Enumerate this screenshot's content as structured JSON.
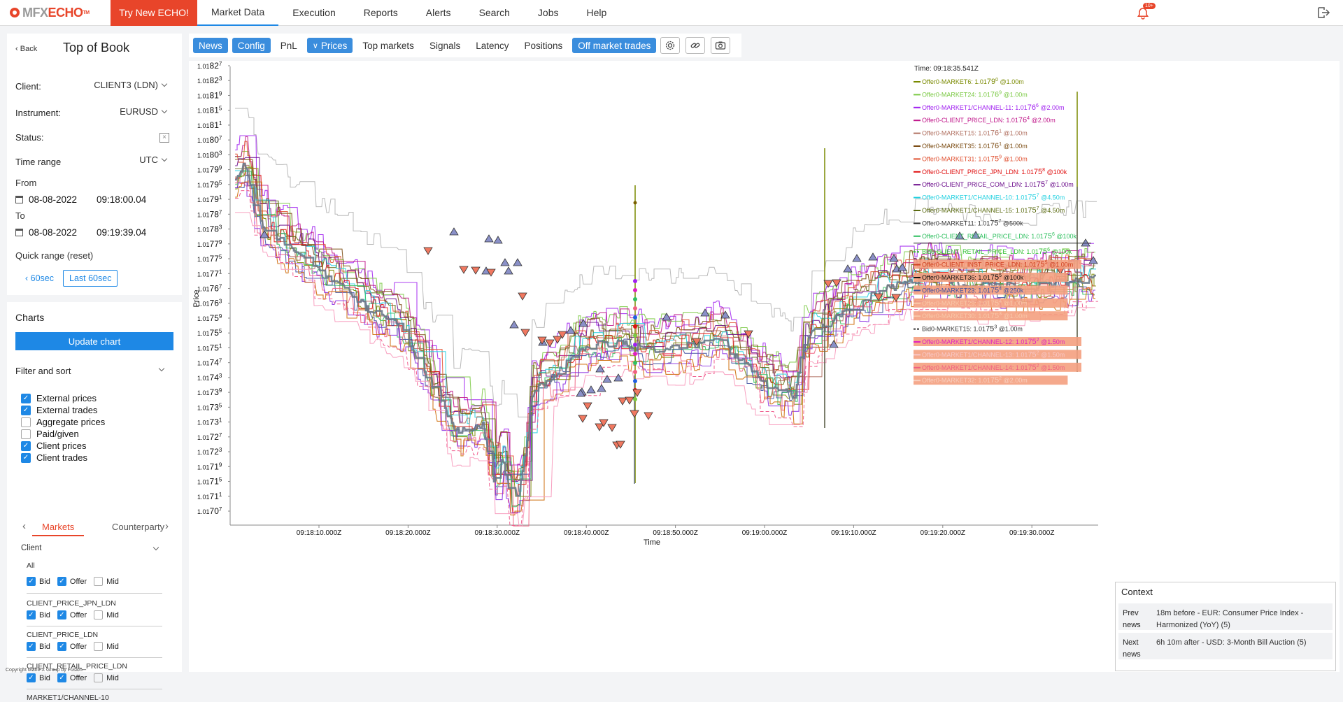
{
  "nav": {
    "logo_a": "MFX",
    "logo_b": "ECHO",
    "logo_tm": "TM",
    "try_btn": "Try New ECHO!",
    "items": [
      "Market Data",
      "Execution",
      "Reports",
      "Alerts",
      "Search",
      "Jobs",
      "Help"
    ],
    "bell_badge": "10+"
  },
  "panel": {
    "back": "Back",
    "title": "Top of Book",
    "client_label": "Client:",
    "client_value": "CLIENT3 (LDN)",
    "instrument_label": "Instrument:",
    "instrument_value": "EURUSD",
    "status_label": "Status:",
    "timerange_label": "Time range",
    "timerange_value": "UTC",
    "from_label": "From",
    "from_date": "08-08-2022",
    "from_time": "09:18:00.04",
    "to_label": "To",
    "to_date": "08-08-2022",
    "to_time": "09:19:39.04",
    "quick_range": "Quick range (reset)",
    "btn_60": "60sec",
    "btn_last60": "Last 60sec"
  },
  "charts": {
    "heading": "Charts",
    "update_btn": "Update chart",
    "filter_label": "Filter and sort",
    "filters": [
      {
        "label": "External prices",
        "checked": true
      },
      {
        "label": "External trades",
        "checked": true
      },
      {
        "label": "Aggregate prices",
        "checked": false
      },
      {
        "label": "Paid/given",
        "checked": false
      },
      {
        "label": "Client prices",
        "checked": true
      },
      {
        "label": "Client trades",
        "checked": true
      }
    ],
    "tab_markets": "Markets",
    "tab_counterparty": "Counterparty",
    "client_group": "Client",
    "all_label": "All",
    "bid": "Bid",
    "offer": "Offer",
    "mid": "Mid",
    "groups": [
      "CLIENT_PRICE_JPN_LDN",
      "CLIENT_PRICE_LDN",
      "CLIENT_RETAIL_PRICE_LDN",
      "MARKET1/CHANNEL-10"
    ],
    "copyright": "Copyright MahiFX Group by Fusion"
  },
  "toolbar": {
    "buttons": [
      {
        "label": "News",
        "on": true
      },
      {
        "label": "Config",
        "on": true
      },
      {
        "label": "PnL",
        "on": false
      },
      {
        "label": "Prices",
        "on": true
      },
      {
        "label": "Top markets",
        "on": false
      },
      {
        "label": "Signals",
        "on": false
      },
      {
        "label": "Latency",
        "on": false
      },
      {
        "label": "Positions",
        "on": false
      },
      {
        "label": "Off market trades",
        "on": true
      }
    ]
  },
  "chart_data": {
    "type": "line",
    "xlabel": "Time",
    "ylabel": "Price",
    "x_ticks": [
      "09:18:10.000Z",
      "09:18:20.000Z",
      "09:18:30.000Z",
      "09:18:40.000Z",
      "09:18:50.000Z",
      "09:19:00.000Z",
      "09:19:10.000Z",
      "09:19:20.000Z",
      "09:19:30.000Z"
    ],
    "y_ticks": [
      {
        "a": "1.01",
        "b": "82",
        "c": "7"
      },
      {
        "a": "1.01",
        "b": "82",
        "c": "3"
      },
      {
        "a": "1.01",
        "b": "81",
        "c": "9"
      },
      {
        "a": "1.01",
        "b": "81",
        "c": "5"
      },
      {
        "a": "1.01",
        "b": "81",
        "c": "1"
      },
      {
        "a": "1.01",
        "b": "80",
        "c": "7"
      },
      {
        "a": "1.01",
        "b": "80",
        "c": "3"
      },
      {
        "a": "1.01",
        "b": "79",
        "c": "9"
      },
      {
        "a": "1.01",
        "b": "79",
        "c": "5"
      },
      {
        "a": "1.01",
        "b": "79",
        "c": "1"
      },
      {
        "a": "1.01",
        "b": "78",
        "c": "7"
      },
      {
        "a": "1.01",
        "b": "78",
        "c": "3"
      },
      {
        "a": "1.01",
        "b": "77",
        "c": "9"
      },
      {
        "a": "1.01",
        "b": "77",
        "c": "5"
      },
      {
        "a": "1.01",
        "b": "77",
        "c": "1"
      },
      {
        "a": "1.01",
        "b": "76",
        "c": "7"
      },
      {
        "a": "1.01",
        "b": "76",
        "c": "3"
      },
      {
        "a": "1.01",
        "b": "75",
        "c": "9"
      },
      {
        "a": "1.01",
        "b": "75",
        "c": "5"
      },
      {
        "a": "1.01",
        "b": "75",
        "c": "1"
      },
      {
        "a": "1.01",
        "b": "74",
        "c": "7"
      },
      {
        "a": "1.01",
        "b": "74",
        "c": "3"
      },
      {
        "a": "1.01",
        "b": "73",
        "c": "9"
      },
      {
        "a": "1.01",
        "b": "73",
        "c": "5"
      },
      {
        "a": "1.01",
        "b": "73",
        "c": "1"
      },
      {
        "a": "1.01",
        "b": "72",
        "c": "7"
      },
      {
        "a": "1.01",
        "b": "72",
        "c": "3"
      },
      {
        "a": "1.01",
        "b": "71",
        "c": "9"
      },
      {
        "a": "1.01",
        "b": "71",
        "c": "5"
      },
      {
        "a": "1.01",
        "b": "71",
        "c": "1"
      },
      {
        "a": "1.01",
        "b": "70",
        "c": "7"
      }
    ],
    "legend_time": "Time: 09:18:35.541Z",
    "legend": [
      {
        "name": "Offer0-MARKET6:",
        "p1": "1.01",
        "p2": "79",
        "p3": "0",
        "size": "@1.00m",
        "color": "#7a8a00",
        "bg": null,
        "dash": false
      },
      {
        "name": "Offer0-MARKET24:",
        "p1": "1.01",
        "p2": "76",
        "p3": "9",
        "size": "@1.00m",
        "color": "#7ac943",
        "bg": null,
        "dash": false
      },
      {
        "name": "Offer0-MARKET1/CHANNEL-11:",
        "p1": "1.01",
        "p2": "76",
        "p3": "6",
        "size": "@2.00m",
        "color": "#a020f0",
        "bg": null,
        "dash": false
      },
      {
        "name": "Offer0-CLIENT_PRICE_LDN:",
        "p1": "1.01",
        "p2": "76",
        "p3": "4",
        "size": "@2.00m",
        "color": "#c0168a",
        "bg": null,
        "dash": false
      },
      {
        "name": "Offer0-MARKET15:",
        "p1": "1.01",
        "p2": "76",
        "p3": "1",
        "size": "@1.00m",
        "color": "#b07060",
        "bg": null,
        "dash": false
      },
      {
        "name": "Offer0-MARKET35:",
        "p1": "1.01",
        "p2": "76",
        "p3": "1",
        "size": "@1.00m",
        "color": "#7a4a10",
        "bg": null,
        "dash": false
      },
      {
        "name": "Offer0-MARKET31:",
        "p1": "1.01",
        "p2": "75",
        "p3": "9",
        "size": "@1.00m",
        "color": "#e05030",
        "bg": null,
        "dash": false
      },
      {
        "name": "Offer0-CLIENT_PRICE_JPN_LDN:",
        "p1": "1.01",
        "p2": "75",
        "p3": "8",
        "size": "@100k",
        "color": "#e01010",
        "bg": null,
        "dash": false
      },
      {
        "name": "Offer0-CLIENT_PRICE_COM_LDN:",
        "p1": "1.01",
        "p2": "75",
        "p3": "7",
        "size": "@1.00m",
        "color": "#6a0a8a",
        "bg": null,
        "dash": false
      },
      {
        "name": "Offer0-MARKET1/CHANNEL-10:",
        "p1": "1.01",
        "p2": "75",
        "p3": "7",
        "size": "@4.50m",
        "color": "#20d0e0",
        "bg": null,
        "dash": false
      },
      {
        "name": "Offer0-MARKET1/CHANNEL-15:",
        "p1": "1.01",
        "p2": "75",
        "p3": "7",
        "size": "@4.50m",
        "color": "#5a6a10",
        "bg": null,
        "dash": false
      },
      {
        "name": "Offer0-MARKET11:",
        "p1": "1.01",
        "p2": "75",
        "p3": "7",
        "size": "@500k",
        "color": "#333333",
        "bg": null,
        "dash": false
      },
      {
        "name": "Offer0-CLIENT_RETAIL_PRICE_LDN:",
        "p1": "1.01",
        "p2": "75",
        "p3": "6",
        "size": "@100k",
        "color": "#30c060",
        "bg": null,
        "dash": false
      },
      {
        "name": "Bid0-CLIENT_RETAIL_PRICE_LDN:",
        "p1": "1.01",
        "p2": "75",
        "p3": "6",
        "size": "@100k",
        "color": "#30c030",
        "bg": null,
        "dash": true
      },
      {
        "name": "Offer0-CLIENT_INST_PRICE_LDN:",
        "p1": "1.01",
        "p2": "75",
        "p3": "5",
        "size": "@1.00m",
        "color": "#d04020",
        "bg": "#f4a080",
        "dash": false
      },
      {
        "name": "Offer0-MARKET36:",
        "p1": "1.01",
        "p2": "75",
        "p3": "5",
        "size": "@100k",
        "color": "#111111",
        "bg": "#f4a080",
        "dash": false
      },
      {
        "name": "Offer0-MARKET23:",
        "p1": "1.01",
        "p2": "75",
        "p3": "4",
        "size": "@250k",
        "color": "#4050a0",
        "bg": "#f4a080",
        "dash": false
      },
      {
        "name": "Offer0-MARKET29:",
        "p1": "1.01",
        "p2": "75",
        "p3": "4",
        "size": "@1.00m",
        "color": "#f8c8a8",
        "bg": "#f4a080",
        "dash": false
      },
      {
        "name": "Offer0-MARKET30:",
        "p1": "1.01",
        "p2": "75",
        "p3": "3",
        "size": "@1.00m",
        "color": "#f8c8a8",
        "bg": "#f4a080",
        "dash": false
      },
      {
        "name": "Bid0-MARKET15:",
        "p1": "1.01",
        "p2": "75",
        "p3": "3",
        "size": "@1.00m",
        "color": "#333333",
        "bg": null,
        "dash": true
      },
      {
        "name": "Offer0-MARKET1/CHANNEL-12:",
        "p1": "1.01",
        "p2": "75",
        "p3": "2",
        "size": "@1.50m",
        "color": "#e020c0",
        "bg": "#f4a080",
        "dash": false
      },
      {
        "name": "Offer0-MARKET1/CHANNEL-13:",
        "p1": "1.01",
        "p2": "75",
        "p3": "2",
        "size": "@1.50m",
        "color": "#f8c8c8",
        "bg": "#f4a080",
        "dash": false
      },
      {
        "name": "Offer0-MARKET1/CHANNEL-14:",
        "p1": "1.01",
        "p2": "75",
        "p3": "2",
        "size": "@1.50m",
        "color": "#f06080",
        "bg": "#f4a080",
        "dash": false
      },
      {
        "name": "Offer0-MARKET32:",
        "p1": "1.01",
        "p2": "75",
        "p3": "2",
        "size": "@2.00m",
        "color": "#f8d0c0",
        "bg": "#f4a080",
        "dash": false
      }
    ]
  },
  "context": {
    "heading": "Context",
    "rows": [
      {
        "k": "Prev news",
        "v": "18m before - EUR: Consumer Price Index - Harmonized (YoY) (5)"
      },
      {
        "k": "Next news",
        "v": "6h 10m after - USD: 3-Month Bill Auction (5)"
      }
    ]
  }
}
